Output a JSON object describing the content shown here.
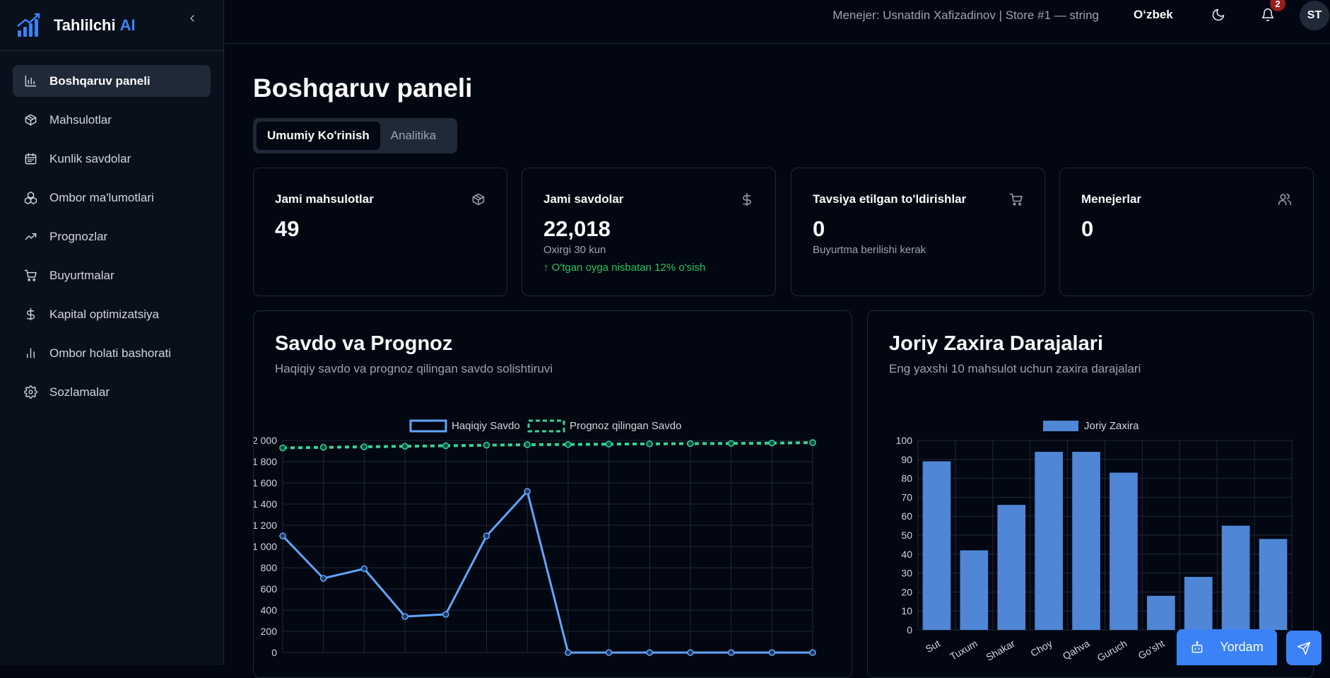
{
  "brand": {
    "name": "Tahlilchi",
    "ai": "AI"
  },
  "sidebar": {
    "items": [
      {
        "label": "Boshqaruv paneli",
        "icon": "bar-chart-icon",
        "active": true
      },
      {
        "label": "Mahsulotlar",
        "icon": "package-icon"
      },
      {
        "label": "Kunlik savdolar",
        "icon": "calendar-icon"
      },
      {
        "label": "Ombor ma'lumotlari",
        "icon": "boxes-icon"
      },
      {
        "label": "Prognozlar",
        "icon": "trending-up-icon"
      },
      {
        "label": "Buyurtmalar",
        "icon": "cart-icon"
      },
      {
        "label": "Kapital optimizatsiya",
        "icon": "dollar-icon"
      },
      {
        "label": "Ombor holati bashorati",
        "icon": "bar-chart-small-icon"
      },
      {
        "label": "Sozlamalar",
        "icon": "gear-icon"
      }
    ]
  },
  "topbar": {
    "manager_info": "Menejer: Usnatdin Xafizadinov | Store #1 — string",
    "language": "O‘zbek",
    "notification_count": "2",
    "avatar_initials": "ST"
  },
  "page": {
    "title": "Boshqaruv paneli",
    "tabs": [
      {
        "label": "Umumiy Ko'rinish",
        "active": true
      },
      {
        "label": "Analitika"
      }
    ]
  },
  "cards": [
    {
      "title": "Jami mahsulotlar",
      "value": "49",
      "icon": "package-icon"
    },
    {
      "title": "Jami savdolar",
      "value": "22,018",
      "sub": "Oxirgi 30 kun",
      "growth": "O'tgan oyga nisbatan 12% o'sish",
      "icon": "dollar-icon"
    },
    {
      "title": "Tavsiya etilgan to'ldirishlar",
      "value": "0",
      "sub": "Buyurtma berilishi kerak",
      "icon": "cart-icon"
    },
    {
      "title": "Menejerlar",
      "value": "0",
      "icon": "users-icon"
    }
  ],
  "sales_panel": {
    "title": "Savdo va Prognoz",
    "subtitle": "Haqiqiy savdo va prognoz qilingan savdo solishtiruvi"
  },
  "stock_panel": {
    "title": "Joriy Zaxira Darajalari",
    "subtitle": "Eng yaxshi 10 mahsulot uchun zaxira darajalari"
  },
  "chart_data": [
    {
      "type": "line",
      "x_count": 14,
      "series": [
        {
          "name": "Haqiqiy Savdo",
          "color": "#60a5fa",
          "style": "solid",
          "values": [
            1100,
            700,
            790,
            340,
            360,
            1100,
            1520,
            0,
            0,
            0,
            0,
            0,
            0,
            0
          ]
        },
        {
          "name": "Prognoz qilingan Savdo",
          "color": "#34d399",
          "style": "dashed",
          "values": [
            1930,
            1935,
            1940,
            1945,
            1950,
            1955,
            1960,
            1962,
            1965,
            1968,
            1970,
            1972,
            1975,
            1980
          ]
        }
      ],
      "yticks": [
        "2 000",
        "1 800",
        "1 600",
        "1 400",
        "1 200",
        "1 000",
        "800",
        "600",
        "400",
        "200",
        "0"
      ],
      "ylim": [
        0,
        2000
      ],
      "legend": "top",
      "grid": true
    },
    {
      "type": "bar",
      "categories": [
        "Sut",
        "Tuxum",
        "Shakar",
        "Choy",
        "Qahva",
        "Guruch",
        "Go'sht",
        "",
        "",
        ""
      ],
      "series": [
        {
          "name": "Joriy Zaxira",
          "color": "#4f86d6",
          "values": [
            89,
            42,
            66,
            94,
            94,
            83,
            18,
            28,
            55,
            48
          ]
        }
      ],
      "yticks": [
        "100",
        "90",
        "80",
        "70",
        "60",
        "50",
        "40",
        "30",
        "20",
        "10",
        "0"
      ],
      "ylim": [
        0,
        100
      ],
      "legend": "top",
      "grid": true
    }
  ],
  "help": {
    "label": "Yordam"
  }
}
